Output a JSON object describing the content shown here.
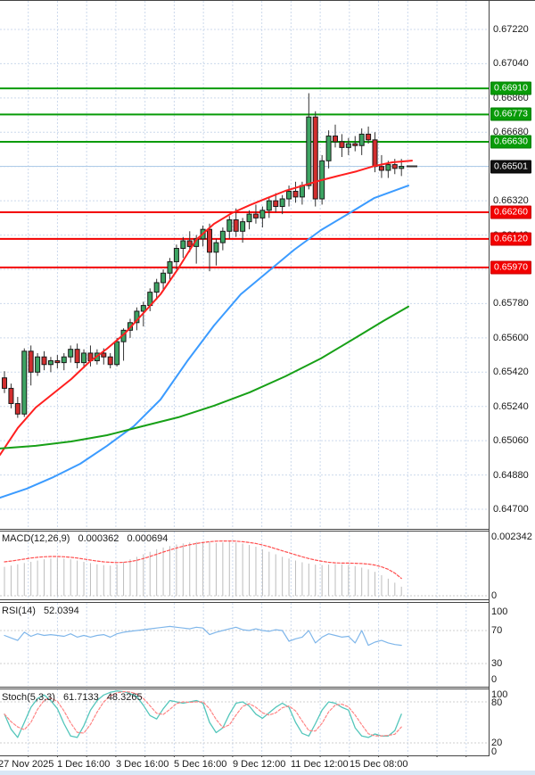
{
  "chart_data": {
    "type": "candlestick",
    "title": "",
    "x_axis_labels": [
      "27 Nov 2025",
      "1 Dec 16:00",
      "3 Dec 16:00",
      "5 Dec 16:00",
      "9 Dec 12:00",
      "11 Dec 12:00",
      "15 Dec 08:00"
    ],
    "y_axis": {
      "max": 0.6722,
      "min": 0.647,
      "tick_step": 0.0018,
      "ticks": [
        "0.67220",
        "0.67040",
        "0.66860",
        "0.66680",
        "0.66320",
        "0.66140",
        "0.65780",
        "0.65600",
        "0.65420",
        "0.65240",
        "0.65060",
        "0.64880",
        "0.64700"
      ]
    },
    "grid": true,
    "current_price": 0.66501,
    "current_price_label": "0.66501",
    "resistance_levels": [
      0.6691,
      0.66773,
      0.6663
    ],
    "resistance_labels": [
      "0.66910",
      "0.66773",
      "0.66630"
    ],
    "support_levels": [
      0.6626,
      0.6612,
      0.6597
    ],
    "support_labels": [
      "0.66260",
      "0.66120",
      "0.65970"
    ],
    "colors": {
      "bull_candle": "#3da463",
      "bear_candle": "#d22e2e",
      "candle_outline": "#1a1a1a",
      "resistance": "#089b08",
      "support": "#f30000",
      "current_price_line": "#aecbe8",
      "ma_fast": "#ff1f1f",
      "ma_mid": "#3b9bff",
      "ma_slow": "#17a017",
      "macd_hist": "#bdbdbd",
      "macd_signal": "#ff4f4f",
      "rsi_line": "#7fb6ea",
      "stoch_k": "#53c6bb",
      "stoch_d": "#ff8484",
      "grid": "#ccd9ec",
      "frame": "#444444"
    },
    "candles": [
      [
        0.6539,
        0.65425,
        0.6531,
        0.65335
      ],
      [
        0.65335,
        0.6536,
        0.6523,
        0.65255
      ],
      [
        0.65255,
        0.6529,
        0.6518,
        0.652
      ],
      [
        0.652,
        0.65545,
        0.65185,
        0.6553
      ],
      [
        0.6553,
        0.6556,
        0.6535,
        0.6542
      ],
      [
        0.6542,
        0.6552,
        0.654,
        0.655
      ],
      [
        0.655,
        0.6553,
        0.6543,
        0.6546
      ],
      [
        0.6546,
        0.655,
        0.6542,
        0.6548
      ],
      [
        0.6548,
        0.6551,
        0.6544,
        0.6547
      ],
      [
        0.6547,
        0.6552,
        0.6543,
        0.655
      ],
      [
        0.655,
        0.6556,
        0.6547,
        0.6554
      ],
      [
        0.6554,
        0.6557,
        0.6544,
        0.6547
      ],
      [
        0.6547,
        0.6554,
        0.6544,
        0.6552
      ],
      [
        0.6552,
        0.6556,
        0.6545,
        0.6548
      ],
      [
        0.6548,
        0.6554,
        0.6546,
        0.6552
      ],
      [
        0.6552,
        0.65545,
        0.6546,
        0.655
      ],
      [
        0.655,
        0.6552,
        0.6544,
        0.6546
      ],
      [
        0.6546,
        0.656,
        0.6545,
        0.6558
      ],
      [
        0.6558,
        0.6565,
        0.6548,
        0.6564
      ],
      [
        0.6564,
        0.657,
        0.656,
        0.6568
      ],
      [
        0.6568,
        0.6576,
        0.6564,
        0.6574
      ],
      [
        0.6574,
        0.6579,
        0.6566,
        0.6577
      ],
      [
        0.6577,
        0.6586,
        0.6574,
        0.6584
      ],
      [
        0.6584,
        0.6591,
        0.658,
        0.6589
      ],
      [
        0.6589,
        0.6596,
        0.6585,
        0.6594
      ],
      [
        0.6594,
        0.6602,
        0.659,
        0.66
      ],
      [
        0.66,
        0.6609,
        0.6596,
        0.6607
      ],
      [
        0.6607,
        0.6613,
        0.6602,
        0.6611
      ],
      [
        0.6611,
        0.6616,
        0.6605,
        0.6608
      ],
      [
        0.6608,
        0.6614,
        0.6599,
        0.6612
      ],
      [
        0.6612,
        0.6619,
        0.6608,
        0.6617
      ],
      [
        0.6617,
        0.662,
        0.6595,
        0.6605
      ],
      [
        0.6605,
        0.6612,
        0.6598,
        0.661
      ],
      [
        0.661,
        0.6618,
        0.6606,
        0.6616
      ],
      [
        0.6616,
        0.6624,
        0.6612,
        0.6622
      ],
      [
        0.6622,
        0.6628,
        0.6613,
        0.6616
      ],
      [
        0.6616,
        0.6623,
        0.661,
        0.6621
      ],
      [
        0.6621,
        0.6627,
        0.6617,
        0.6625
      ],
      [
        0.6625,
        0.663,
        0.662,
        0.6623
      ],
      [
        0.6623,
        0.6629,
        0.6618,
        0.6627
      ],
      [
        0.6627,
        0.6634,
        0.6623,
        0.6632
      ],
      [
        0.6632,
        0.6636,
        0.6626,
        0.6629
      ],
      [
        0.6629,
        0.6635,
        0.6625,
        0.6633
      ],
      [
        0.6633,
        0.664,
        0.6629,
        0.6637
      ],
      [
        0.6637,
        0.6642,
        0.6631,
        0.6634
      ],
      [
        0.6634,
        0.6642,
        0.663,
        0.664
      ],
      [
        0.664,
        0.66885,
        0.6638,
        0.6676
      ],
      [
        0.6676,
        0.6679,
        0.6629,
        0.6633
      ],
      [
        0.6633,
        0.6656,
        0.663,
        0.6653
      ],
      [
        0.6653,
        0.6669,
        0.6649,
        0.6666
      ],
      [
        0.6666,
        0.6672,
        0.666,
        0.6663
      ],
      [
        0.6663,
        0.6667,
        0.6655,
        0.666
      ],
      [
        0.666,
        0.6665,
        0.6656,
        0.6662
      ],
      [
        0.6662,
        0.6666,
        0.6658,
        0.6661
      ],
      [
        0.6661,
        0.667,
        0.6656,
        0.6667
      ],
      [
        0.6667,
        0.6671,
        0.6662,
        0.6664
      ],
      [
        0.6664,
        0.6668,
        0.6647,
        0.665
      ],
      [
        0.665,
        0.6656,
        0.6644,
        0.6648
      ],
      [
        0.6648,
        0.6653,
        0.6644,
        0.6651
      ],
      [
        0.6651,
        0.6654,
        0.6646,
        0.6649
      ],
      [
        0.6649,
        0.6654,
        0.6645,
        0.66501
      ]
    ],
    "moving_averages": [
      {
        "name": "ma-fast-red",
        "points": [
          [
            0,
            0.64986
          ],
          [
            20,
            0.65127
          ],
          [
            40,
            0.65234
          ],
          [
            60,
            0.65309
          ],
          [
            80,
            0.65384
          ],
          [
            100,
            0.65473
          ],
          [
            120,
            0.65543
          ],
          [
            140,
            0.65623
          ],
          [
            160,
            0.65726
          ],
          [
            180,
            0.65829
          ],
          [
            200,
            0.65965
          ],
          [
            220,
            0.66115
          ],
          [
            240,
            0.66199
          ],
          [
            260,
            0.66255
          ],
          [
            280,
            0.66297
          ],
          [
            300,
            0.66335
          ],
          [
            320,
            0.66372
          ],
          [
            340,
            0.664
          ],
          [
            360,
            0.66428
          ],
          [
            380,
            0.66452
          ],
          [
            400,
            0.66475
          ],
          [
            420,
            0.66503
          ],
          [
            440,
            0.66522
          ],
          [
            462,
            0.66531
          ]
        ]
      },
      {
        "name": "ma-mid-blue",
        "points": [
          [
            0,
            0.64761
          ],
          [
            30,
            0.64808
          ],
          [
            60,
            0.64869
          ],
          [
            90,
            0.64939
          ],
          [
            120,
            0.65033
          ],
          [
            150,
            0.65136
          ],
          [
            180,
            0.65276
          ],
          [
            210,
            0.65478
          ],
          [
            240,
            0.65665
          ],
          [
            270,
            0.65829
          ],
          [
            300,
            0.65946
          ],
          [
            330,
            0.66063
          ],
          [
            360,
            0.66166
          ],
          [
            390,
            0.6625
          ],
          [
            420,
            0.66335
          ],
          [
            458,
            0.664
          ]
        ]
      },
      {
        "name": "ma-slow-green",
        "points": [
          [
            0,
            0.65019
          ],
          [
            40,
            0.65033
          ],
          [
            80,
            0.65056
          ],
          [
            120,
            0.65089
          ],
          [
            160,
            0.65136
          ],
          [
            200,
            0.65183
          ],
          [
            240,
            0.65244
          ],
          [
            280,
            0.65314
          ],
          [
            320,
            0.65398
          ],
          [
            360,
            0.65492
          ],
          [
            400,
            0.65604
          ],
          [
            430,
            0.65689
          ],
          [
            458,
            0.65764
          ]
        ]
      }
    ],
    "macd": {
      "label": "MACD(12,26,9)",
      "value_main": "0.000362",
      "value_signal": "0.000694",
      "scale_max": "0.002342",
      "scale_min": "0",
      "scale_max_value": 0.002342,
      "hist": [
        0.00115,
        0.0012,
        0.00125,
        0.0013,
        0.00135,
        0.0014,
        0.00145,
        0.00148,
        0.0015,
        0.00148,
        0.00145,
        0.0014,
        0.00135,
        0.0013,
        0.00125,
        0.00122,
        0.0012,
        0.00125,
        0.00135,
        0.00145,
        0.00155,
        0.00165,
        0.00175,
        0.00185,
        0.00192,
        0.00198,
        0.00204,
        0.00208,
        0.00212,
        0.00214,
        0.00215,
        0.00213,
        0.0021,
        0.00212,
        0.00215,
        0.00212,
        0.00208,
        0.00202,
        0.00195,
        0.00185,
        0.00175,
        0.00165,
        0.00155,
        0.00148,
        0.0014,
        0.00133,
        0.00128,
        0.00124,
        0.00122,
        0.00124,
        0.00126,
        0.00125,
        0.00122,
        0.00118,
        0.00112,
        0.00105,
        0.00095,
        0.00082,
        0.00068,
        0.00052,
        0.00036
      ],
      "signal": [
        0.00135,
        0.00138,
        0.00142,
        0.00146,
        0.0015,
        0.00153,
        0.00155,
        0.00156,
        0.00156,
        0.00155,
        0.00153,
        0.0015,
        0.00146,
        0.00142,
        0.00138,
        0.00135,
        0.00133,
        0.00132,
        0.00133,
        0.00136,
        0.00141,
        0.00148,
        0.00156,
        0.00165,
        0.00174,
        0.00182,
        0.0019,
        0.00197,
        0.00203,
        0.00208,
        0.00212,
        0.00215,
        0.00217,
        0.00218,
        0.00218,
        0.00217,
        0.00215,
        0.00212,
        0.00208,
        0.00202,
        0.00195,
        0.00187,
        0.00179,
        0.00171,
        0.00163,
        0.00155,
        0.00148,
        0.00142,
        0.00137,
        0.00133,
        0.00131,
        0.0013,
        0.0013,
        0.00129,
        0.00128,
        0.00126,
        0.00122,
        0.00115,
        0.00105,
        0.0009,
        0.00069
      ]
    },
    "rsi": {
      "label": "RSI(14)",
      "value": "52.0394",
      "scale_labels": [
        "100",
        "70",
        "30",
        "0"
      ],
      "levels": [
        70,
        30
      ],
      "values": [
        64,
        61,
        58,
        68,
        63,
        66,
        64,
        65,
        64,
        63,
        66,
        62,
        64,
        62,
        64,
        65,
        62,
        66,
        68,
        69,
        70,
        71,
        72,
        73,
        74,
        75,
        74,
        73,
        72,
        74,
        73,
        65,
        68,
        70,
        72,
        74,
        71,
        70,
        72,
        70,
        69,
        71,
        70,
        57,
        60,
        62,
        70,
        55,
        62,
        66,
        64,
        62,
        63,
        55,
        70,
        52,
        56,
        58,
        55,
        53,
        52
      ]
    },
    "stoch": {
      "label": "Stoch(5,3,3)",
      "value_k": "61.7133",
      "value_d": "48.3265",
      "scale_labels": [
        "100",
        "80",
        "20",
        "0"
      ],
      "levels": [
        80,
        20
      ],
      "k": [
        62,
        40,
        28,
        50,
        72,
        85,
        90,
        82,
        70,
        48,
        30,
        28,
        45,
        68,
        82,
        90,
        94,
        96,
        95,
        92,
        88,
        75,
        60,
        55,
        70,
        82,
        80,
        78,
        80,
        82,
        78,
        50,
        35,
        42,
        62,
        78,
        80,
        74,
        62,
        56,
        64,
        72,
        78,
        72,
        50,
        34,
        30,
        48,
        68,
        80,
        78,
        72,
        68,
        42,
        30,
        28,
        33,
        30,
        30,
        38,
        62
      ]
    }
  }
}
